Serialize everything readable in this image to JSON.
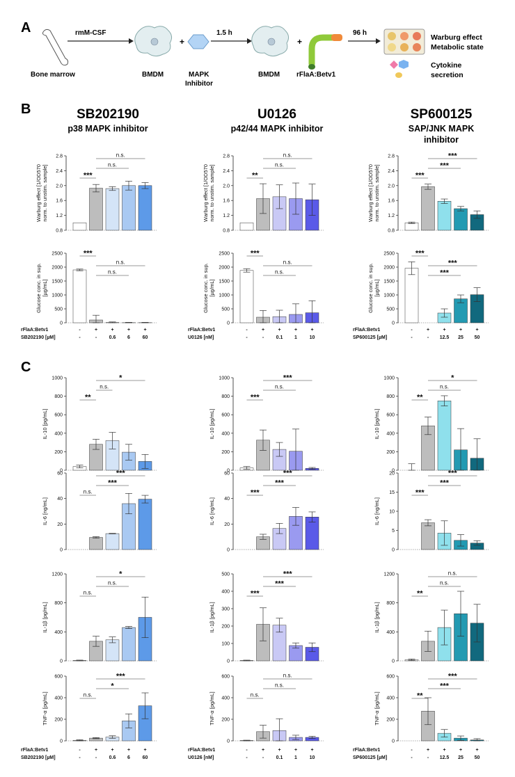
{
  "panel_letters": {
    "a": "A",
    "b": "B",
    "c": "C"
  },
  "schematic": {
    "bone_marrow": "Bone marrow",
    "step1": "rmM-CSF",
    "bmdm1": "BMDM",
    "plus1": "+",
    "inhibitor": [
      "MAPK",
      "Inhibitor"
    ],
    "step2": "1.5 h",
    "bmdm2": "BMDM",
    "plus2": "+",
    "protein": "rFlaA:Betv1",
    "step3": "96 h",
    "readout1": [
      "Warburg effect",
      "Metabolic state"
    ],
    "readout2": [
      "Cytokine",
      "secretion"
    ]
  },
  "inhibitors": [
    {
      "name": "SB202190",
      "target": [
        "p38 MAPK inhibitor"
      ]
    },
    {
      "name": "U0126",
      "target": [
        "p42/44 MAPK inhibitor"
      ]
    },
    {
      "name": "SP600125",
      "target": [
        "SAP/JNK MAPK",
        "inhibitor"
      ]
    }
  ],
  "conditions": [
    {
      "row1_label": "rFlaA:Betv1",
      "row2_label": "SB202190 [µM]",
      "row1": [
        "-",
        "+",
        "+",
        "+",
        "+"
      ],
      "row2": [
        "-",
        "-",
        "0.6",
        "6",
        "60"
      ]
    },
    {
      "row1_label": "rFlaA:Betv1",
      "row2_label": "U0126 [nM]",
      "row1": [
        "-",
        "+",
        "+",
        "+",
        "+"
      ],
      "row2": [
        "-",
        "-",
        "0.1",
        "1",
        "10"
      ]
    },
    {
      "row1_label": "rFlaA:Betv1",
      "row2_label": "SP600125 [µM]",
      "row1": [
        "-",
        "+",
        "+",
        "+",
        "+"
      ],
      "row2": [
        "-",
        "-",
        "12.5",
        "25",
        "50"
      ]
    }
  ],
  "palettes": [
    [
      "#ffffff",
      "#bdbdbd",
      "#d4e4f7",
      "#a9c9f2",
      "#5d9ae8"
    ],
    [
      "#ffffff",
      "#bdbdbd",
      "#c9c9f5",
      "#9a9af0",
      "#5a5ae8"
    ],
    [
      "#ffffff",
      "#bdbdbd",
      "#8fe0ec",
      "#239ab2",
      "#11697e"
    ]
  ],
  "chart_data": [
    {
      "type": "bar",
      "id": "warburg-sb",
      "ylabel": [
        "Warburg effect [1/OD570",
        "norm. to unstim. sample]"
      ],
      "ylim": [
        0.8,
        2.8
      ],
      "yticks": [
        "0.8",
        "1.2",
        "1.6",
        "2.0",
        "2.4",
        "2.8"
      ],
      "tickvals": [
        0.8,
        1.2,
        1.6,
        2.0,
        2.4,
        2.8
      ],
      "values": [
        1.0,
        1.93,
        1.92,
        2.0,
        2.0
      ],
      "errors": [
        0,
        0.1,
        0.05,
        0.12,
        0.08
      ],
      "sig": [
        {
          "from": 1,
          "to": 4,
          "label": "n.s."
        },
        {
          "from": 1,
          "to": 3,
          "label": "n.s."
        },
        {
          "from": 0,
          "to": 1,
          "label": "***"
        }
      ]
    },
    {
      "type": "bar",
      "id": "warburg-u0",
      "ylabel": [
        "Warburg effect [1/OD570",
        "norm. to unstim. sample]"
      ],
      "ylim": [
        0.8,
        2.8
      ],
      "yticks": [
        "0.8",
        "1.2",
        "1.6",
        "2.0",
        "2.4",
        "2.8"
      ],
      "tickvals": [
        0.8,
        1.2,
        1.6,
        2.0,
        2.4,
        2.8
      ],
      "values": [
        1.0,
        1.65,
        1.7,
        1.65,
        1.62
      ],
      "errors": [
        0,
        0.4,
        0.32,
        0.42,
        0.42
      ],
      "sig": [
        {
          "from": 1,
          "to": 4,
          "label": "n.s."
        },
        {
          "from": 1,
          "to": 3,
          "label": "n.s."
        },
        {
          "from": 0,
          "to": 1,
          "label": "**"
        }
      ]
    },
    {
      "type": "bar",
      "id": "warburg-sp",
      "ylabel": [
        "Warburg effect [1/OD570",
        "norm. to unstim. sample]"
      ],
      "ylim": [
        0.8,
        2.8
      ],
      "yticks": [
        "0.8",
        "1.2",
        "1.6",
        "2.0",
        "2.4",
        "2.8"
      ],
      "tickvals": [
        0.8,
        1.2,
        1.6,
        2.0,
        2.4,
        2.8
      ],
      "values": [
        1.0,
        1.97,
        1.58,
        1.38,
        1.22
      ],
      "errors": [
        0.02,
        0.07,
        0.06,
        0.06,
        0.1
      ],
      "sig": [
        {
          "from": 1,
          "to": 4,
          "label": "***"
        },
        {
          "from": 1,
          "to": 3,
          "label": "***"
        },
        {
          "from": 0,
          "to": 1,
          "label": "***"
        }
      ]
    },
    {
      "type": "bar",
      "id": "glucose-sb",
      "ylabel": [
        "Glucose conc. in sup.",
        "[µg/mL]"
      ],
      "ylim": [
        0,
        2500
      ],
      "yticks": [
        "0",
        "500",
        "1000",
        "1500",
        "2000",
        "2500"
      ],
      "tickvals": [
        0,
        500,
        1000,
        1500,
        2000,
        2500
      ],
      "values": [
        1900,
        100,
        10,
        5,
        5
      ],
      "errors": [
        30,
        170,
        20,
        10,
        10
      ],
      "sig": [
        {
          "from": 0,
          "to": 1,
          "label": "***"
        },
        {
          "from": 1,
          "to": 4,
          "label": "n.s."
        },
        {
          "from": 1,
          "to": 3,
          "label": "n.s."
        }
      ]
    },
    {
      "type": "bar",
      "id": "glucose-u0",
      "ylabel": [
        "Glucose conc. in sup.",
        "[µg/mL]"
      ],
      "ylim": [
        0,
        2500
      ],
      "yticks": [
        "0",
        "500",
        "1000",
        "1500",
        "2000",
        "2500"
      ],
      "tickvals": [
        0,
        500,
        1000,
        1500,
        2000,
        2500
      ],
      "values": [
        1880,
        200,
        220,
        300,
        360
      ],
      "errors": [
        60,
        240,
        230,
        380,
        430
      ],
      "sig": [
        {
          "from": 0,
          "to": 1,
          "label": "***"
        },
        {
          "from": 1,
          "to": 4,
          "label": "n.s."
        },
        {
          "from": 1,
          "to": 3,
          "label": "n.s."
        }
      ]
    },
    {
      "type": "bar",
      "id": "glucose-sp",
      "ylabel": [
        "Glucose conc. in sup.",
        "[µg/mL]"
      ],
      "ylim": [
        0,
        2500
      ],
      "yticks": [
        "0",
        "500",
        "1000",
        "1500",
        "2000",
        "2500"
      ],
      "tickvals": [
        0,
        500,
        1000,
        1500,
        2000,
        2500
      ],
      "values": [
        1960,
        0,
        350,
        860,
        1010
      ],
      "errors": [
        230,
        0,
        150,
        140,
        250
      ],
      "sig": [
        {
          "from": 0,
          "to": 1,
          "label": "***"
        },
        {
          "from": 1,
          "to": 4,
          "label": "***"
        },
        {
          "from": 1,
          "to": 3,
          "label": "***"
        }
      ]
    },
    {
      "type": "bar",
      "id": "il10-sb",
      "ylabel": [
        "IL-10 [pg/mL]"
      ],
      "ylim": [
        0,
        1000
      ],
      "yticks": [
        "0",
        "200",
        "400",
        "600",
        "800",
        "1000"
      ],
      "tickvals": [
        0,
        200,
        400,
        600,
        800,
        1000
      ],
      "values": [
        40,
        280,
        320,
        195,
        95
      ],
      "errors": [
        15,
        55,
        90,
        85,
        75
      ],
      "sig": [
        {
          "from": 1,
          "to": 4,
          "label": "*"
        },
        {
          "from": 1,
          "to": 2,
          "label": "n.s."
        },
        {
          "from": 0,
          "to": 1,
          "label": "**"
        }
      ]
    },
    {
      "type": "bar",
      "id": "il10-u0",
      "ylabel": [
        "IL-10 [pg/mL]"
      ],
      "ylim": [
        0,
        1000
      ],
      "yticks": [
        "0",
        "200",
        "400",
        "600",
        "800",
        "1000"
      ],
      "tickvals": [
        0,
        200,
        400,
        600,
        800,
        1000
      ],
      "values": [
        25,
        325,
        225,
        205,
        20
      ],
      "errors": [
        15,
        110,
        75,
        240,
        10
      ],
      "sig": [
        {
          "from": 1,
          "to": 4,
          "label": "***"
        },
        {
          "from": 1,
          "to": 3,
          "label": "n.s."
        },
        {
          "from": 0,
          "to": 1,
          "label": "***"
        }
      ]
    },
    {
      "type": "bar",
      "id": "il10-sp",
      "ylabel": [
        "IL-10 [pg/mL]"
      ],
      "ylim": [
        0,
        1000
      ],
      "yticks": [
        "0",
        "200",
        "400",
        "600",
        "800",
        "1000"
      ],
      "tickvals": [
        0,
        200,
        400,
        600,
        800,
        1000
      ],
      "values": [
        0,
        480,
        750,
        220,
        130
      ],
      "errors": [
        70,
        95,
        55,
        230,
        210
      ],
      "sig": [
        {
          "from": 1,
          "to": 4,
          "label": "*"
        },
        {
          "from": 1,
          "to": 3,
          "label": "n.s."
        },
        {
          "from": 0,
          "to": 1,
          "label": "**"
        }
      ]
    },
    {
      "type": "bar",
      "id": "il6-sb",
      "ylabel": [
        "IL-6 [ng/mL]"
      ],
      "ylim": [
        0,
        60
      ],
      "yticks": [
        "0",
        "20",
        "40",
        "60"
      ],
      "tickvals": [
        0,
        20,
        40,
        60
      ],
      "values": [
        0,
        9.5,
        12.5,
        36,
        39.5
      ],
      "errors": [
        0,
        0.6,
        0.2,
        8,
        3
      ],
      "sig": [
        {
          "from": 1,
          "to": 4,
          "label": "***"
        },
        {
          "from": 1,
          "to": 3,
          "label": "***"
        },
        {
          "from": 0,
          "to": 1,
          "label": "n.s."
        }
      ]
    },
    {
      "type": "bar",
      "id": "il6-u0",
      "ylabel": [
        "IL-6 [ng/mL]"
      ],
      "ylim": [
        0,
        60
      ],
      "yticks": [
        "0",
        "20",
        "40",
        "60"
      ],
      "tickvals": [
        0,
        20,
        40,
        60
      ],
      "values": [
        0,
        10,
        16.5,
        26,
        25.5
      ],
      "errors": [
        0,
        2,
        4,
        7,
        4
      ],
      "sig": [
        {
          "from": 1,
          "to": 4,
          "label": "***"
        },
        {
          "from": 1,
          "to": 3,
          "label": "***"
        },
        {
          "from": 0,
          "to": 1,
          "label": "***"
        }
      ]
    },
    {
      "type": "bar",
      "id": "il6-sp",
      "ylabel": [
        "IL-6 [ng/mL]"
      ],
      "ylim": [
        0,
        20
      ],
      "yticks": [
        "0",
        "5",
        "10",
        "15",
        "20"
      ],
      "tickvals": [
        0,
        5,
        10,
        15,
        20
      ],
      "values": [
        0,
        7,
        4.3,
        2.4,
        1.7
      ],
      "errors": [
        0,
        0.8,
        3.2,
        1.5,
        0.6
      ],
      "sig": [
        {
          "from": 1,
          "to": 4,
          "label": "***"
        },
        {
          "from": 1,
          "to": 3,
          "label": "***"
        },
        {
          "from": 0,
          "to": 1,
          "label": "***"
        }
      ]
    },
    {
      "type": "bar",
      "id": "il1b-sb",
      "ylabel": [
        "IL-1β [pg/mL]"
      ],
      "ylim": [
        0,
        1200
      ],
      "yticks": [
        "0",
        "400",
        "800",
        "1200"
      ],
      "tickvals": [
        0,
        400,
        800,
        1200
      ],
      "values": [
        5,
        270,
        290,
        460,
        600
      ],
      "errors": [
        5,
        70,
        40,
        15,
        280
      ],
      "sig": [
        {
          "from": 1,
          "to": 4,
          "label": "*"
        },
        {
          "from": 1,
          "to": 3,
          "label": "n.s."
        },
        {
          "from": 0,
          "to": 1,
          "label": "n.s."
        }
      ]
    },
    {
      "type": "bar",
      "id": "il1b-u0",
      "ylabel": [
        "IL-1β [pg/mL]"
      ],
      "ylim": [
        0,
        500
      ],
      "yticks": [
        "0",
        "100",
        "200",
        "300",
        "400",
        "500"
      ],
      "tickvals": [
        0,
        100,
        200,
        300,
        400,
        500
      ],
      "values": [
        2,
        210,
        205,
        88,
        78
      ],
      "errors": [
        2,
        95,
        40,
        15,
        25
      ],
      "sig": [
        {
          "from": 1,
          "to": 4,
          "label": "***"
        },
        {
          "from": 1,
          "to": 3,
          "label": "***"
        },
        {
          "from": 0,
          "to": 1,
          "label": "***"
        }
      ]
    },
    {
      "type": "bar",
      "id": "il1b-sp",
      "ylabel": [
        "IL-1β [pg/mL]"
      ],
      "ylim": [
        0,
        1200
      ],
      "yticks": [
        "0",
        "400",
        "800",
        "1200"
      ],
      "tickvals": [
        0,
        400,
        800,
        1200
      ],
      "values": [
        15,
        270,
        460,
        650,
        520
      ],
      "errors": [
        10,
        140,
        240,
        310,
        260
      ],
      "sig": [
        {
          "from": 1,
          "to": 4,
          "label": "n.s."
        },
        {
          "from": 1,
          "to": 3,
          "label": "n.s."
        },
        {
          "from": 0,
          "to": 1,
          "label": "**"
        }
      ]
    },
    {
      "type": "bar",
      "id": "tnf-sb",
      "ylabel": [
        "TNF-α [pg/mL]"
      ],
      "ylim": [
        0,
        600
      ],
      "yticks": [
        "0",
        "200",
        "400",
        "600"
      ],
      "tickvals": [
        0,
        200,
        400,
        600
      ],
      "values": [
        5,
        25,
        35,
        185,
        325
      ],
      "errors": [
        5,
        5,
        12,
        65,
        120
      ],
      "sig": [
        {
          "from": 1,
          "to": 4,
          "label": "***"
        },
        {
          "from": 1,
          "to": 3,
          "label": "*"
        },
        {
          "from": 0,
          "to": 1,
          "label": "n.s."
        }
      ]
    },
    {
      "type": "bar",
      "id": "tnf-u0",
      "ylabel": [
        "TNF-α [pg/mL]"
      ],
      "ylim": [
        0,
        600
      ],
      "yticks": [
        "0",
        "200",
        "400",
        "600"
      ],
      "tickvals": [
        0,
        200,
        400,
        600
      ],
      "values": [
        3,
        85,
        95,
        32,
        32
      ],
      "errors": [
        3,
        60,
        110,
        20,
        10
      ],
      "sig": [
        {
          "from": 1,
          "to": 4,
          "label": "n.s."
        },
        {
          "from": 1,
          "to": 3,
          "label": "n.s."
        },
        {
          "from": 0,
          "to": 1,
          "label": "n.s."
        }
      ]
    },
    {
      "type": "bar",
      "id": "tnf-sp",
      "ylabel": [
        "TNF-α [pg/mL]"
      ],
      "ylim": [
        0,
        600
      ],
      "yticks": [
        "0",
        "200",
        "400",
        "600"
      ],
      "tickvals": [
        0,
        200,
        400,
        600
      ],
      "values": [
        0,
        275,
        70,
        25,
        8
      ],
      "errors": [
        0,
        125,
        35,
        20,
        12
      ],
      "sig": [
        {
          "from": 1,
          "to": 4,
          "label": "***"
        },
        {
          "from": 1,
          "to": 3,
          "label": "***"
        },
        {
          "from": 0,
          "to": 1,
          "label": "**"
        }
      ]
    }
  ]
}
